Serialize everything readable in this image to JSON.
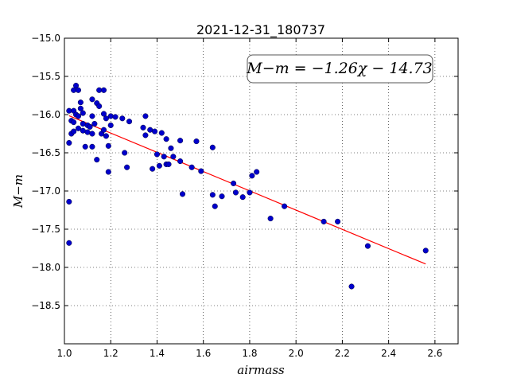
{
  "chart_data": {
    "type": "scatter",
    "title": "2021-12-31_180737",
    "xlabel": "airmass",
    "ylabel": "M−m",
    "xlim": [
      1.0,
      2.7
    ],
    "ylim": [
      -19.0,
      -15.0
    ],
    "y_inverted": true,
    "grid": true,
    "grid_style": "dotted",
    "xticks": [
      1.0,
      1.2,
      1.4,
      1.6,
      1.8,
      2.0,
      2.2,
      2.4,
      2.6
    ],
    "xtick_labels": [
      "1.0",
      "1.2",
      "1.4",
      "1.6",
      "1.8",
      "2.0",
      "2.2",
      "2.4",
      "2.6"
    ],
    "yticks": [
      -15.0,
      -15.5,
      -16.0,
      -16.5,
      -17.0,
      -17.5,
      -18.0,
      -18.5
    ],
    "ytick_labels": [
      "−15.0",
      "−15.5",
      "−16.0",
      "−16.5",
      "−17.0",
      "−17.5",
      "−18.0",
      "−18.5"
    ],
    "annotation": "M−m = −1.26χ − 14.73",
    "fit_line": {
      "slope": -1.26,
      "intercept": -14.73,
      "x_range": [
        1.02,
        2.56
      ],
      "color": "#ff0000"
    },
    "point_color": "#0000cc",
    "points": [
      [
        1.02,
        -16.37
      ],
      [
        1.02,
        -17.14
      ],
      [
        1.02,
        -17.68
      ],
      [
        1.02,
        -15.95
      ],
      [
        1.03,
        -16.25
      ],
      [
        1.03,
        -16.08
      ],
      [
        1.04,
        -15.68
      ],
      [
        1.04,
        -15.95
      ],
      [
        1.04,
        -16.1
      ],
      [
        1.04,
        -16.22
      ],
      [
        1.05,
        -15.62
      ],
      [
        1.05,
        -16.0
      ],
      [
        1.06,
        -15.68
      ],
      [
        1.06,
        -16.02
      ],
      [
        1.06,
        -16.18
      ],
      [
        1.07,
        -15.84
      ],
      [
        1.07,
        -15.92
      ],
      [
        1.08,
        -15.98
      ],
      [
        1.08,
        -16.12
      ],
      [
        1.08,
        -16.21
      ],
      [
        1.09,
        -16.42
      ],
      [
        1.1,
        -16.23
      ],
      [
        1.1,
        -16.14
      ],
      [
        1.11,
        -16.16
      ],
      [
        1.12,
        -16.02
      ],
      [
        1.12,
        -15.8
      ],
      [
        1.12,
        -16.25
      ],
      [
        1.12,
        -16.42
      ],
      [
        1.13,
        -16.12
      ],
      [
        1.14,
        -15.85
      ],
      [
        1.14,
        -16.59
      ],
      [
        1.15,
        -15.68
      ],
      [
        1.15,
        -15.89
      ],
      [
        1.16,
        -16.25
      ],
      [
        1.17,
        -15.68
      ],
      [
        1.17,
        -15.99
      ],
      [
        1.17,
        -16.2
      ],
      [
        1.18,
        -16.05
      ],
      [
        1.18,
        -16.28
      ],
      [
        1.19,
        -16.41
      ],
      [
        1.19,
        -16.75
      ],
      [
        1.2,
        -16.02
      ],
      [
        1.2,
        -16.14
      ],
      [
        1.22,
        -16.03
      ],
      [
        1.25,
        -16.05
      ],
      [
        1.26,
        -16.5
      ],
      [
        1.27,
        -16.69
      ],
      [
        1.28,
        -16.09
      ],
      [
        1.34,
        -16.17
      ],
      [
        1.35,
        -16.02
      ],
      [
        1.35,
        -16.27
      ],
      [
        1.37,
        -16.2
      ],
      [
        1.38,
        -16.71
      ],
      [
        1.39,
        -16.22
      ],
      [
        1.4,
        -16.52
      ],
      [
        1.41,
        -16.67
      ],
      [
        1.42,
        -16.24
      ],
      [
        1.43,
        -16.55
      ],
      [
        1.44,
        -16.32
      ],
      [
        1.44,
        -16.65
      ],
      [
        1.45,
        -16.65
      ],
      [
        1.46,
        -16.44
      ],
      [
        1.47,
        -16.55
      ],
      [
        1.5,
        -16.34
      ],
      [
        1.5,
        -16.61
      ],
      [
        1.51,
        -17.04
      ],
      [
        1.55,
        -16.69
      ],
      [
        1.57,
        -16.35
      ],
      [
        1.59,
        -16.74
      ],
      [
        1.64,
        -16.43
      ],
      [
        1.64,
        -17.05
      ],
      [
        1.65,
        -17.2
      ],
      [
        1.68,
        -17.07
      ],
      [
        1.73,
        -16.9
      ],
      [
        1.74,
        -17.02
      ],
      [
        1.77,
        -17.08
      ],
      [
        1.8,
        -17.02
      ],
      [
        1.81,
        -16.8
      ],
      [
        1.83,
        -16.75
      ],
      [
        1.89,
        -17.36
      ],
      [
        1.95,
        -17.2
      ],
      [
        2.12,
        -17.4
      ],
      [
        2.18,
        -17.4
      ],
      [
        2.24,
        -18.25
      ],
      [
        2.31,
        -17.72
      ],
      [
        2.56,
        -17.78
      ]
    ]
  }
}
